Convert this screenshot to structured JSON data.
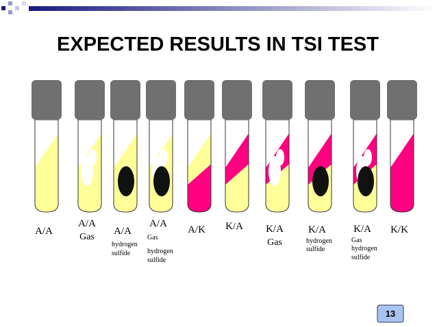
{
  "title": "EXPECTED RESULTS IN TSI TEST",
  "tubes": [
    {
      "result": "A/A",
      "notes": []
    },
    {
      "result": "A/A",
      "notes": [
        "Gas"
      ]
    },
    {
      "result": "A/A",
      "notes": [
        "hydrogen",
        "sulfide"
      ]
    },
    {
      "result": "A/A",
      "notes": [
        "Gas",
        "hydrogen",
        "sulfide"
      ]
    },
    {
      "result": "A/K",
      "notes": []
    },
    {
      "result": "K/A",
      "notes": []
    },
    {
      "result": "K/A",
      "notes": [
        "Gas"
      ]
    },
    {
      "result": "K/A",
      "notes": [
        "hydrogen",
        "sulfide"
      ]
    },
    {
      "result": "K/A",
      "notes": [
        "Gas",
        "hydrogen",
        "sulfide"
      ]
    },
    {
      "result": "K/K",
      "notes": []
    }
  ],
  "page_number": "13"
}
